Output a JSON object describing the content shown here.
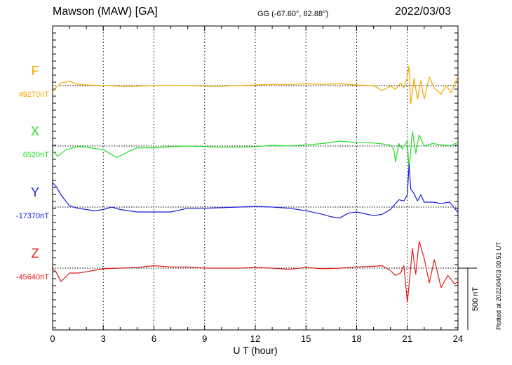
{
  "header": {
    "station": "Mawson (MAW)  [GA]",
    "coords": "GG (-67.60°,  62.88°)",
    "date": "2022/03/03"
  },
  "footer": {
    "plotted": "Plotted at 2022/04/03 00:51 UT"
  },
  "chart_data": {
    "type": "line",
    "title": "Mawson (MAW)  [GA]",
    "xlabel": "U T (hour)",
    "xlim": [
      0,
      24
    ],
    "xticks": [
      "0",
      "3",
      "6",
      "9",
      "12",
      "15",
      "18",
      "21",
      "24"
    ],
    "grid": true,
    "scale_bar": {
      "label": "500 nT",
      "value_nT": 500
    },
    "series": [
      {
        "name": "F",
        "baseline": "49270nT",
        "color": "#f5a800",
        "x": [
          0,
          0.2,
          0.5,
          1,
          1.5,
          2,
          3,
          4,
          5,
          6,
          7,
          8,
          9,
          10,
          11,
          12,
          13,
          14,
          15,
          16,
          17,
          18,
          19,
          19.5,
          20,
          20.3,
          20.6,
          20.8,
          21,
          21.1,
          21.2,
          21.4,
          21.6,
          21.8,
          22,
          22.3,
          22.6,
          23,
          23.3,
          23.6,
          24
        ],
        "values": [
          -55,
          -15,
          20,
          35,
          10,
          5,
          0,
          -5,
          -5,
          0,
          0,
          0,
          -5,
          -5,
          0,
          5,
          10,
          10,
          15,
          10,
          15,
          5,
          0,
          -40,
          -5,
          -30,
          20,
          -20,
          70,
          160,
          -150,
          60,
          -110,
          40,
          -110,
          70,
          -20,
          -70,
          0,
          -60,
          80
        ]
      },
      {
        "name": "X",
        "baseline": "6520nT",
        "color": "#22e022",
        "x": [
          0,
          0.3,
          0.8,
          1.5,
          2,
          3,
          3.8,
          4.5,
          5,
          6,
          7,
          8,
          9,
          10,
          11,
          12,
          13,
          14,
          15,
          16,
          17,
          18,
          19,
          20,
          20.2,
          20.3,
          20.5,
          20.7,
          21,
          21.1,
          21.3,
          21.5,
          21.7,
          22,
          22.5,
          23,
          23.5,
          24
        ],
        "values": [
          -40,
          -85,
          -30,
          -5,
          -10,
          -30,
          -95,
          -45,
          -15,
          -15,
          -5,
          0,
          -5,
          -10,
          -10,
          -5,
          5,
          0,
          10,
          20,
          40,
          30,
          25,
          10,
          -30,
          -130,
          20,
          -25,
          40,
          -195,
          120,
          -60,
          90,
          0,
          20,
          10,
          0,
          30
        ]
      },
      {
        "name": "Y",
        "baseline": "-17370nT",
        "color": "#1a1ae0",
        "x": [
          0,
          0.2,
          0.5,
          1,
          1.5,
          2,
          2.5,
          3,
          3.5,
          4,
          5,
          6,
          7,
          8,
          9,
          10,
          11,
          12,
          13,
          14,
          15,
          16,
          16.5,
          17,
          17.5,
          18,
          19,
          19.5,
          20,
          20.5,
          20.8,
          21,
          21.1,
          21.2,
          21.4,
          21.6,
          21.8,
          22,
          22.5,
          23,
          23.5,
          24
        ],
        "values": [
          200,
          170,
          100,
          10,
          -10,
          -20,
          -30,
          -20,
          0,
          -20,
          -40,
          -40,
          -40,
          -10,
          -10,
          -5,
          0,
          5,
          0,
          -10,
          -30,
          -60,
          -80,
          -90,
          -50,
          -40,
          -70,
          -60,
          -20,
          60,
          50,
          100,
          350,
          150,
          110,
          50,
          100,
          40,
          40,
          30,
          40,
          -45
        ]
      },
      {
        "name": "Z",
        "baseline": "-45640nT",
        "color": "#e01a1a",
        "x": [
          0,
          0.2,
          0.5,
          1,
          1.5,
          2,
          3,
          4,
          5,
          6,
          7,
          8,
          9,
          10,
          11,
          12,
          13,
          14,
          15,
          16,
          17,
          18,
          19,
          19.5,
          20,
          20.3,
          20.6,
          20.8,
          21,
          21.1,
          21.3,
          21.5,
          21.7,
          22,
          22.3,
          22.6,
          23,
          23.4,
          23.8,
          24
        ],
        "values": [
          0,
          -30,
          -110,
          -40,
          -40,
          -30,
          -5,
          0,
          5,
          20,
          10,
          10,
          0,
          0,
          0,
          5,
          0,
          -10,
          5,
          -5,
          0,
          10,
          15,
          20,
          -20,
          -60,
          -40,
          20,
          -280,
          -140,
          160,
          -50,
          220,
          80,
          -120,
          70,
          -160,
          -60,
          -130,
          -110
        ]
      }
    ]
  }
}
